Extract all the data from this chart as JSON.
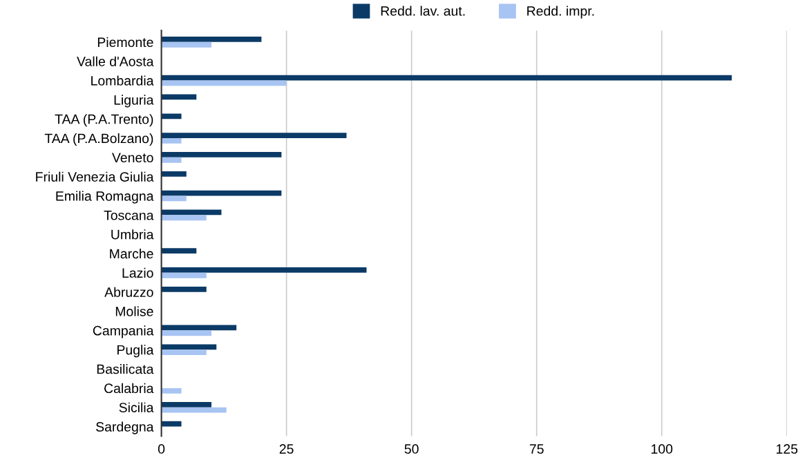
{
  "chart_data": {
    "type": "bar",
    "orientation": "horizontal",
    "categories": [
      "Piemonte",
      "Valle d'Aosta",
      "Lombardia",
      "Liguria",
      "TAA (P.A.Trento)",
      "TAA (P.A.Bolzano)",
      "Veneto",
      "Friuli Venezia Giulia",
      "Emilia Romagna",
      "Toscana",
      "Umbria",
      "Marche",
      "Lazio",
      "Abruzzo",
      "Molise",
      "Campania",
      "Puglia",
      "Basilicata",
      "Calabria",
      "Sicilia",
      "Sardegna"
    ],
    "series": [
      {
        "name": "Redd. lav. aut.",
        "color": "#0b3a66",
        "values": [
          20,
          null,
          114,
          7,
          4,
          37,
          24,
          5,
          24,
          12,
          null,
          7,
          41,
          9,
          null,
          15,
          11,
          null,
          null,
          10,
          4
        ]
      },
      {
        "name": "Redd. impr.",
        "color": "#a7c4f2",
        "values": [
          10,
          null,
          25,
          null,
          null,
          4,
          4,
          null,
          5,
          9,
          null,
          null,
          9,
          null,
          null,
          10,
          9,
          null,
          4,
          13,
          null
        ]
      }
    ],
    "xlim": [
      0,
      125
    ],
    "xticks": [
      0,
      25,
      50,
      75,
      100,
      125
    ],
    "grid": "x",
    "legend": "top"
  }
}
